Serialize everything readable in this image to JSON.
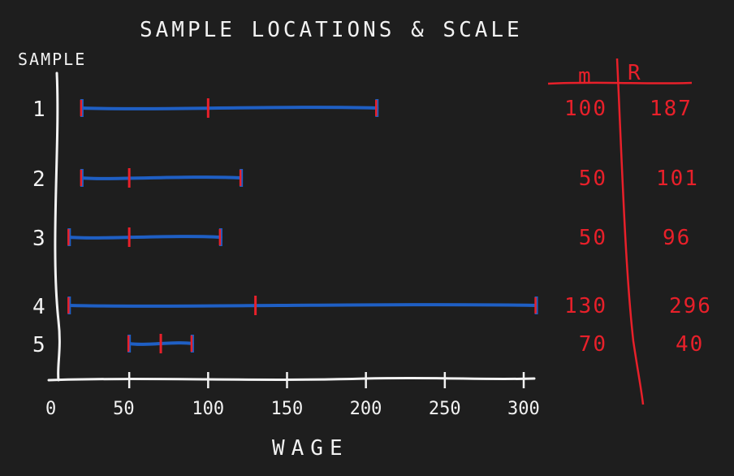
{
  "chart_data": {
    "type": "range",
    "title": "SAMPLE LOCATIONS & SCALE",
    "xlabel": "WAGE",
    "ylabel": "SAMPLE",
    "xlim": [
      0,
      300
    ],
    "x_ticks": [
      "0",
      "50",
      "100",
      "150",
      "200",
      "250",
      "300"
    ],
    "x_tick_values": [
      0,
      50,
      100,
      150,
      200,
      250,
      300
    ],
    "samples": [
      {
        "label": "1",
        "min": 20,
        "m": 100,
        "max": 207,
        "m_text": "100",
        "R_text": "187"
      },
      {
        "label": "2",
        "min": 20,
        "m": 50,
        "max": 121,
        "m_text": "50",
        "R_text": "101"
      },
      {
        "label": "3",
        "min": 12,
        "m": 50,
        "max": 108,
        "m_text": "50",
        "R_text": "96"
      },
      {
        "label": "4",
        "min": 12,
        "m": 130,
        "max": 308,
        "m_text": "130",
        "R_text": "296"
      },
      {
        "label": "5",
        "min": 50,
        "m": 70,
        "max": 90,
        "m_text": "70",
        "R_text": "40"
      }
    ],
    "table": {
      "col_m": "m",
      "col_R": "R"
    },
    "colors": {
      "background": "#1e1e1e",
      "axis": "#f2f2f2",
      "range_line": "#1f5fc4",
      "marker": "#e8202a"
    }
  }
}
